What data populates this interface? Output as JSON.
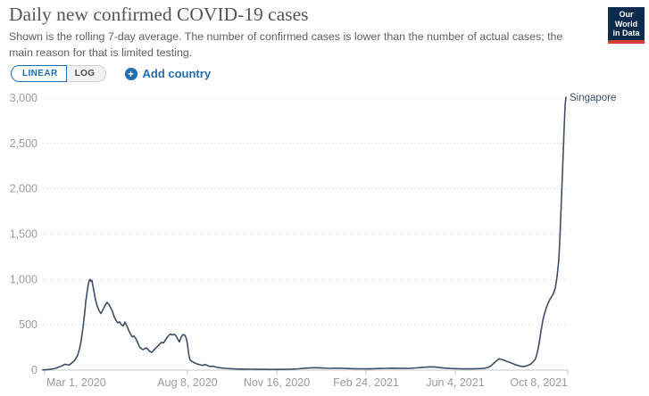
{
  "header": {
    "title": "Daily new confirmed COVID-19 cases",
    "subtitle": "Shown is the rolling 7-day average. The number of confirmed cases is lower than the number of actual cases; the main reason for that is limited testing.",
    "logo": {
      "line1": "Our World",
      "line2": "in Data",
      "bg_color": "#0d2c4d",
      "accent_color": "#d63f36"
    }
  },
  "controls": {
    "scale_toggle": {
      "linear_label": "LINEAR",
      "log_label": "LOG",
      "selected": "LINEAR"
    },
    "plus_icon": "+",
    "add_country_label": "Add country",
    "accent_color": "#1d6db4"
  },
  "chart_data": {
    "type": "line",
    "title": "Daily new confirmed COVID-19 cases",
    "grid": {
      "style": "dashed-horizontal",
      "color": "#e4e4e4",
      "baseline_color": "#c9c9c9",
      "tick_color": "#bdbdbd",
      "label_color": "#9b9b9b"
    },
    "x_axis": {
      "unit": "days since 2020-03-01",
      "range_days": [
        -2,
        586
      ],
      "ticks": [
        {
          "day": 0,
          "label": "Mar 1, 2020",
          "anchor": "start"
        },
        {
          "day": 160,
          "label": "Aug 8, 2020",
          "anchor": "middle"
        },
        {
          "day": 260,
          "label": "Nov 16, 2020",
          "anchor": "middle"
        },
        {
          "day": 360,
          "label": "Feb 24, 2021",
          "anchor": "middle"
        },
        {
          "day": 460,
          "label": "Jun 4, 2021",
          "anchor": "middle"
        },
        {
          "day": 586,
          "label": "Oct 8, 2021",
          "anchor": "end"
        }
      ]
    },
    "y_axis": {
      "range": [
        0,
        3000
      ],
      "ticks": [
        {
          "value": 0,
          "label": "0"
        },
        {
          "value": 500,
          "label": "500"
        },
        {
          "value": 1000,
          "label": "1,000"
        },
        {
          "value": 1500,
          "label": "1,500"
        },
        {
          "value": 2000,
          "label": "2,000"
        },
        {
          "value": 2500,
          "label": "2,500"
        },
        {
          "value": 3000,
          "label": "3,000"
        }
      ]
    },
    "series": [
      {
        "name": "Singapore",
        "color": "#3c4e66",
        "points": [
          [
            -2,
            3
          ],
          [
            0,
            4
          ],
          [
            3,
            6
          ],
          [
            6,
            9
          ],
          [
            9,
            14
          ],
          [
            12,
            20
          ],
          [
            15,
            30
          ],
          [
            18,
            42
          ],
          [
            21,
            55
          ],
          [
            23,
            65
          ],
          [
            25,
            60
          ],
          [
            27,
            56
          ],
          [
            29,
            68
          ],
          [
            31,
            85
          ],
          [
            33,
            100
          ],
          [
            35,
            130
          ],
          [
            37,
            165
          ],
          [
            39,
            230
          ],
          [
            41,
            330
          ],
          [
            43,
            470
          ],
          [
            45,
            640
          ],
          [
            46,
            750
          ],
          [
            47,
            820
          ],
          [
            48,
            890
          ],
          [
            49,
            950
          ],
          [
            50,
            990
          ],
          [
            51,
            1000
          ],
          [
            52,
            978
          ],
          [
            53,
            990
          ],
          [
            55,
            880
          ],
          [
            57,
            775
          ],
          [
            59,
            705
          ],
          [
            61,
            655
          ],
          [
            63,
            625
          ],
          [
            65,
            660
          ],
          [
            67,
            700
          ],
          [
            69,
            735
          ],
          [
            70,
            748
          ],
          [
            72,
            725
          ],
          [
            74,
            688
          ],
          [
            76,
            645
          ],
          [
            78,
            585
          ],
          [
            80,
            548
          ],
          [
            82,
            522
          ],
          [
            84,
            532
          ],
          [
            86,
            500
          ],
          [
            88,
            487
          ],
          [
            90,
            530
          ],
          [
            92,
            492
          ],
          [
            94,
            442
          ],
          [
            96,
            402
          ],
          [
            98,
            368
          ],
          [
            100,
            376
          ],
          [
            102,
            350
          ],
          [
            104,
            310
          ],
          [
            106,
            264
          ],
          [
            108,
            240
          ],
          [
            110,
            226
          ],
          [
            112,
            236
          ],
          [
            114,
            246
          ],
          [
            116,
            226
          ],
          [
            118,
            206
          ],
          [
            120,
            196
          ],
          [
            123,
            228
          ],
          [
            126,
            258
          ],
          [
            129,
            288
          ],
          [
            131,
            308
          ],
          [
            133,
            298
          ],
          [
            135,
            326
          ],
          [
            137,
            358
          ],
          [
            139,
            384
          ],
          [
            141,
            398
          ],
          [
            143,
            388
          ],
          [
            145,
            396
          ],
          [
            147,
            380
          ],
          [
            149,
            344
          ],
          [
            151,
            312
          ],
          [
            153,
            366
          ],
          [
            155,
            392
          ],
          [
            157,
            386
          ],
          [
            158,
            368
          ],
          [
            159,
            336
          ],
          [
            160,
            290
          ],
          [
            161,
            205
          ],
          [
            162,
            142
          ],
          [
            163,
            112
          ],
          [
            165,
            96
          ],
          [
            168,
            80
          ],
          [
            171,
            68
          ],
          [
            174,
            59
          ],
          [
            177,
            53
          ],
          [
            180,
            62
          ],
          [
            183,
            48
          ],
          [
            186,
            39
          ],
          [
            189,
            43
          ],
          [
            192,
            33
          ],
          [
            195,
            28
          ],
          [
            198,
            24
          ],
          [
            202,
            20
          ],
          [
            207,
            17
          ],
          [
            212,
            14
          ],
          [
            218,
            12
          ],
          [
            224,
            11
          ],
          [
            231,
            10
          ],
          [
            238,
            9
          ],
          [
            245,
            9
          ],
          [
            252,
            8
          ],
          [
            260,
            8
          ],
          [
            268,
            9
          ],
          [
            276,
            11
          ],
          [
            284,
            15
          ],
          [
            291,
            21
          ],
          [
            298,
            26
          ],
          [
            305,
            27
          ],
          [
            312,
            23
          ],
          [
            319,
            20
          ],
          [
            326,
            22
          ],
          [
            333,
            21
          ],
          [
            340,
            18
          ],
          [
            347,
            16
          ],
          [
            354,
            15
          ],
          [
            361,
            14
          ],
          [
            368,
            16
          ],
          [
            375,
            18
          ],
          [
            382,
            20
          ],
          [
            389,
            22
          ],
          [
            396,
            21
          ],
          [
            403,
            19
          ],
          [
            410,
            21
          ],
          [
            416,
            25
          ],
          [
            422,
            29
          ],
          [
            428,
            33
          ],
          [
            433,
            36
          ],
          [
            438,
            33
          ],
          [
            443,
            28
          ],
          [
            448,
            23
          ],
          [
            454,
            19
          ],
          [
            460,
            17
          ],
          [
            466,
            15
          ],
          [
            472,
            14
          ],
          [
            478,
            14
          ],
          [
            484,
            16
          ],
          [
            489,
            18
          ],
          [
            493,
            21
          ],
          [
            497,
            30
          ],
          [
            500,
            48
          ],
          [
            503,
            75
          ],
          [
            506,
            100
          ],
          [
            509,
            125
          ],
          [
            512,
            118
          ],
          [
            515,
            108
          ],
          [
            518,
            96
          ],
          [
            521,
            86
          ],
          [
            524,
            74
          ],
          [
            527,
            62
          ],
          [
            530,
            52
          ],
          [
            533,
            43
          ],
          [
            536,
            40
          ],
          [
            539,
            45
          ],
          [
            542,
            55
          ],
          [
            545,
            70
          ],
          [
            548,
            100
          ],
          [
            550,
            130
          ],
          [
            552,
            200
          ],
          [
            554,
            300
          ],
          [
            556,
            430
          ],
          [
            558,
            545
          ],
          [
            560,
            625
          ],
          [
            562,
            690
          ],
          [
            564,
            740
          ],
          [
            566,
            780
          ],
          [
            568,
            812
          ],
          [
            570,
            845
          ],
          [
            572,
            905
          ],
          [
            574,
            1030
          ],
          [
            576,
            1220
          ],
          [
            577,
            1420
          ],
          [
            578,
            1660
          ],
          [
            579,
            1910
          ],
          [
            580,
            2160
          ],
          [
            581,
            2420
          ],
          [
            582,
            2680
          ],
          [
            583,
            2915
          ],
          [
            584,
            3010
          ]
        ]
      }
    ]
  }
}
